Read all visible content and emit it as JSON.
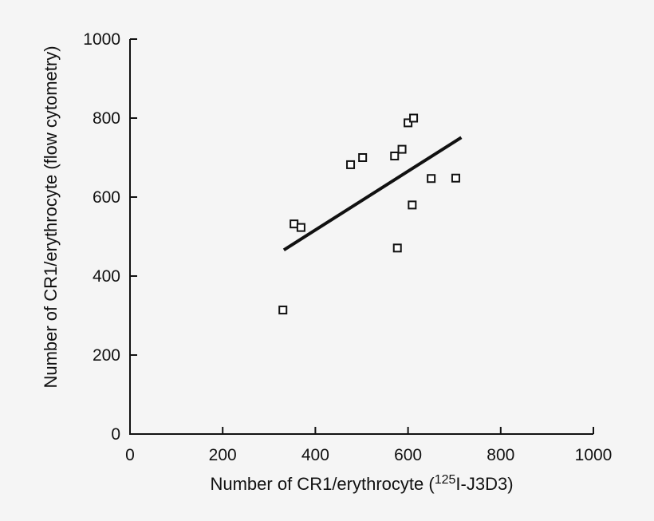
{
  "figure": {
    "background": "#f5f5f5"
  },
  "chart_data": {
    "type": "scatter",
    "title": "",
    "xlabel": {
      "prefix": "Number of CR1/erythrocyte (",
      "superscript": "125",
      "suffix": "I-J3D3)"
    },
    "ylabel": "Number of CR1/erythrocyte (flow cytometry)",
    "xlim": [
      0,
      1000
    ],
    "ylim": [
      0,
      1000
    ],
    "xticks": [
      0,
      200,
      400,
      600,
      800,
      1000
    ],
    "yticks": [
      0,
      200,
      400,
      600,
      800,
      1000
    ],
    "grid": false,
    "legend": null,
    "marker_style": "open-square",
    "points": [
      {
        "x": 330,
        "y": 314
      },
      {
        "x": 354,
        "y": 532
      },
      {
        "x": 369,
        "y": 523
      },
      {
        "x": 476,
        "y": 682
      },
      {
        "x": 502,
        "y": 700
      },
      {
        "x": 571,
        "y": 704
      },
      {
        "x": 587,
        "y": 721
      },
      {
        "x": 600,
        "y": 788
      },
      {
        "x": 612,
        "y": 800
      },
      {
        "x": 650,
        "y": 647
      },
      {
        "x": 703,
        "y": 648
      },
      {
        "x": 609,
        "y": 580
      },
      {
        "x": 577,
        "y": 471
      }
    ],
    "trendline": {
      "x1": 332,
      "y1": 466,
      "x2": 715,
      "y2": 751
    },
    "colors": {
      "axis": "#111111",
      "marker_stroke": "#111111",
      "marker_fill": "#ffffff",
      "trendline": "#111111",
      "background": "#f5f5f5"
    }
  }
}
